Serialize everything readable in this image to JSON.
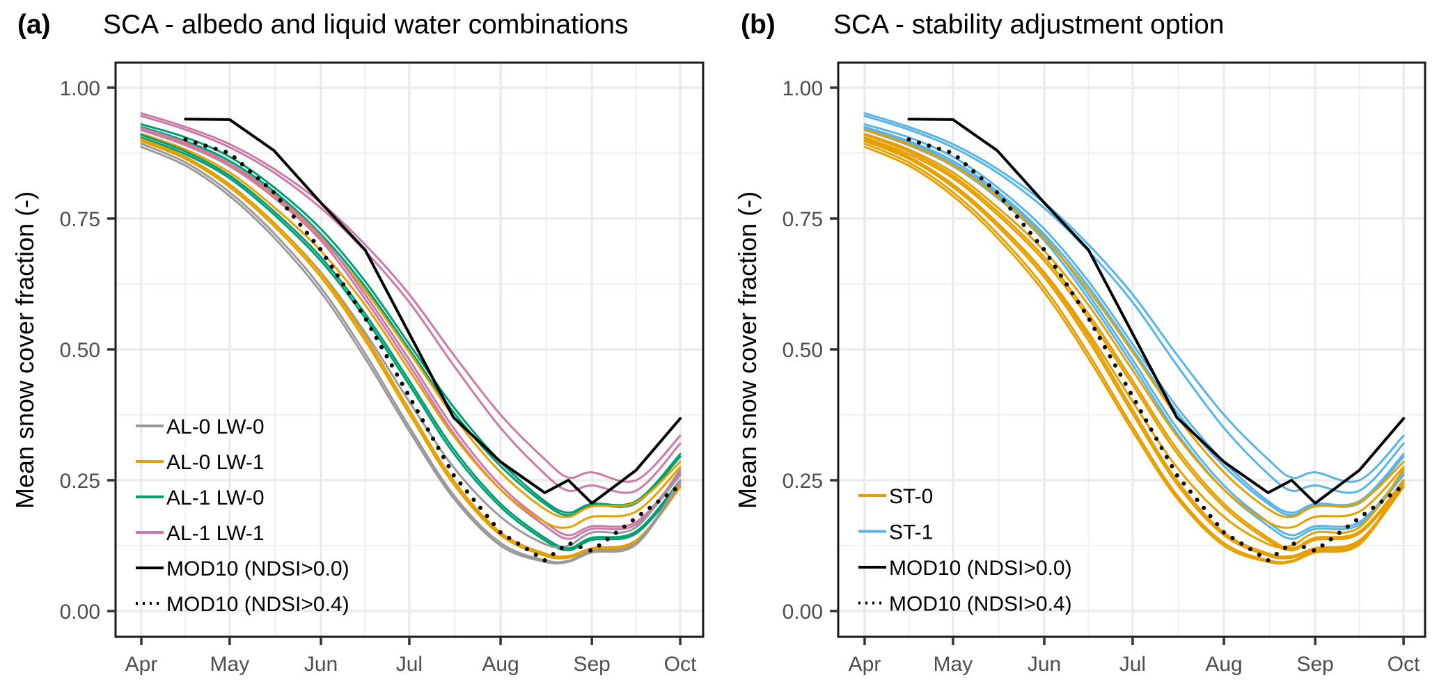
{
  "figure": {
    "panels": [
      {
        "tag": "(a)",
        "title": "SCA - albedo and liquid water combinations"
      },
      {
        "tag": "(b)",
        "title": "SCA - stability adjustment option"
      }
    ]
  },
  "chart_data": [
    {
      "type": "line",
      "panel": "a",
      "title": "SCA - albedo and liquid water combinations",
      "xlabel": "",
      "ylabel": "Mean snow cover fraction (-)",
      "x_unit": "days since Apr 1",
      "xlim": [
        0,
        183
      ],
      "ylim": [
        -0.02,
        1.05
      ],
      "xticks": [
        {
          "day": 0,
          "label": "Apr"
        },
        {
          "day": 30,
          "label": "May"
        },
        {
          "day": 61,
          "label": "Jun"
        },
        {
          "day": 91,
          "label": "Jul"
        },
        {
          "day": 122,
          "label": "Aug"
        },
        {
          "day": 153,
          "label": "Sep"
        },
        {
          "day": 183,
          "label": "Oct"
        }
      ],
      "yticks": [
        {
          "value": 0.0,
          "label": "0.00"
        },
        {
          "value": 0.25,
          "label": "0.25"
        },
        {
          "value": 0.5,
          "label": "0.50"
        },
        {
          "value": 0.75,
          "label": "0.75"
        },
        {
          "value": 1.0,
          "label": "1.00"
        }
      ],
      "grid": true,
      "legend_position": "bottom-left",
      "legend": [
        {
          "label": "AL-0 LW-0",
          "color": "#999999",
          "style": "solid"
        },
        {
          "label": "AL-0 LW-1",
          "color": "#E69F00",
          "style": "solid"
        },
        {
          "label": "AL-1 LW-0",
          "color": "#009E73",
          "style": "solid"
        },
        {
          "label": "AL-1 LW-1",
          "color": "#CC79A7",
          "style": "solid"
        },
        {
          "label": "MOD10 (NDSI>0.0)",
          "color": "#000000",
          "style": "solid"
        },
        {
          "label": "MOD10 (NDSI>0.4)",
          "color": "#000000",
          "style": "dotted"
        }
      ],
      "x": [
        0,
        15,
        30,
        45,
        61,
        76,
        91,
        106,
        122,
        137,
        145,
        153,
        168,
        183
      ],
      "series": [
        {
          "name": "AL-1 LW-1",
          "color": "#CC79A7",
          "values": [
            0.951,
            0.925,
            0.892,
            0.845,
            0.78,
            0.7,
            0.605,
            0.49,
            0.375,
            0.29,
            0.255,
            0.265,
            0.25,
            0.335
          ]
        },
        {
          "name": "AL-1 LW-1",
          "color": "#CC79A7",
          "values": [
            0.946,
            0.92,
            0.886,
            0.838,
            0.77,
            0.688,
            0.59,
            0.47,
            0.35,
            0.262,
            0.23,
            0.24,
            0.23,
            0.32
          ]
        },
        {
          "name": "AL-1 LW-0",
          "color": "#009E73",
          "values": [
            0.93,
            0.905,
            0.868,
            0.81,
            0.73,
            0.63,
            0.51,
            0.39,
            0.285,
            0.21,
            0.188,
            0.205,
            0.21,
            0.3
          ]
        },
        {
          "name": "AL-1 LW-0",
          "color": "#009E73",
          "values": [
            0.925,
            0.898,
            0.86,
            0.802,
            0.72,
            0.62,
            0.5,
            0.38,
            0.277,
            0.205,
            0.183,
            0.202,
            0.206,
            0.295
          ]
        },
        {
          "name": "AL-0 LW-1",
          "color": "#E69F00",
          "values": [
            0.92,
            0.892,
            0.852,
            0.793,
            0.712,
            0.613,
            0.495,
            0.372,
            0.265,
            0.195,
            0.18,
            0.2,
            0.208,
            0.285
          ]
        },
        {
          "name": "AL-1 LW-1",
          "color": "#CC79A7",
          "values": [
            0.923,
            0.895,
            0.855,
            0.797,
            0.716,
            0.605,
            0.48,
            0.35,
            0.24,
            0.17,
            0.145,
            0.162,
            0.17,
            0.265
          ]
        },
        {
          "name": "AL-1 LW-1",
          "color": "#CC79A7",
          "values": [
            0.919,
            0.89,
            0.85,
            0.79,
            0.708,
            0.596,
            0.47,
            0.34,
            0.232,
            0.163,
            0.138,
            0.157,
            0.165,
            0.26
          ]
        },
        {
          "name": "AL-0 LW-1",
          "color": "#E69F00",
          "values": [
            0.912,
            0.882,
            0.838,
            0.772,
            0.688,
            0.585,
            0.46,
            0.335,
            0.232,
            0.17,
            0.16,
            0.18,
            0.19,
            0.275
          ]
        },
        {
          "name": "AL-1 LW-0",
          "color": "#009E73",
          "values": [
            0.91,
            0.878,
            0.832,
            0.764,
            0.676,
            0.568,
            0.44,
            0.31,
            0.205,
            0.14,
            0.12,
            0.14,
            0.152,
            0.25
          ]
        },
        {
          "name": "AL-1 LW-0",
          "color": "#009E73",
          "values": [
            0.905,
            0.873,
            0.827,
            0.758,
            0.669,
            0.56,
            0.432,
            0.302,
            0.199,
            0.135,
            0.116,
            0.136,
            0.148,
            0.245
          ]
        },
        {
          "name": "AL-0 LW-0",
          "color": "#999999",
          "values": [
            0.9,
            0.866,
            0.815,
            0.742,
            0.647,
            0.532,
            0.4,
            0.275,
            0.18,
            0.128,
            0.125,
            0.15,
            0.16,
            0.27
          ]
        },
        {
          "name": "AL-0 LW-1",
          "color": "#E69F00",
          "values": [
            0.902,
            0.868,
            0.815,
            0.742,
            0.645,
            0.525,
            0.385,
            0.25,
            0.15,
            0.11,
            0.105,
            0.12,
            0.135,
            0.24
          ]
        },
        {
          "name": "AL-0 LW-1",
          "color": "#E69F00",
          "values": [
            0.898,
            0.864,
            0.81,
            0.736,
            0.638,
            0.517,
            0.377,
            0.243,
            0.145,
            0.106,
            0.102,
            0.117,
            0.132,
            0.237
          ]
        },
        {
          "name": "AL-0 LW-0",
          "color": "#999999",
          "values": [
            0.893,
            0.857,
            0.8,
            0.722,
            0.618,
            0.492,
            0.352,
            0.222,
            0.13,
            0.097,
            0.096,
            0.115,
            0.13,
            0.25
          ]
        },
        {
          "name": "AL-0 LW-0",
          "color": "#999999",
          "values": [
            0.887,
            0.851,
            0.793,
            0.714,
            0.609,
            0.483,
            0.344,
            0.216,
            0.125,
            0.094,
            0.094,
            0.112,
            0.127,
            0.245
          ]
        },
        {
          "name": "MOD10 (NDSI>0.0)",
          "color": "#000000",
          "style": "solid",
          "values": [
            null,
            0.94,
            0.939,
            0.88,
            0.78,
            0.69,
            0.53,
            0.37,
            0.285,
            0.226,
            0.25,
            0.206,
            0.269,
            0.368
          ]
        },
        {
          "name": "MOD10 (NDSI>0.4)",
          "color": "#000000",
          "style": "dotted",
          "values": [
            null,
            0.901,
            0.875,
            0.8,
            0.69,
            0.56,
            0.41,
            0.26,
            0.15,
            0.097,
            0.13,
            0.115,
            0.178,
            0.24
          ]
        }
      ]
    },
    {
      "type": "line",
      "panel": "b",
      "title": "SCA - stability adjustment option",
      "xlabel": "",
      "ylabel": "Mean snow cover fraction (-)",
      "x_unit": "days since Apr 1",
      "xlim": [
        0,
        183
      ],
      "ylim": [
        -0.02,
        1.05
      ],
      "xticks": [
        {
          "day": 0,
          "label": "Apr"
        },
        {
          "day": 30,
          "label": "May"
        },
        {
          "day": 61,
          "label": "Jun"
        },
        {
          "day": 91,
          "label": "Jul"
        },
        {
          "day": 122,
          "label": "Aug"
        },
        {
          "day": 153,
          "label": "Sep"
        },
        {
          "day": 183,
          "label": "Oct"
        }
      ],
      "yticks": [
        {
          "value": 0.0,
          "label": "0.00"
        },
        {
          "value": 0.25,
          "label": "0.25"
        },
        {
          "value": 0.5,
          "label": "0.50"
        },
        {
          "value": 0.75,
          "label": "0.75"
        },
        {
          "value": 1.0,
          "label": "1.00"
        }
      ],
      "grid": true,
      "legend_position": "bottom-left",
      "legend": [
        {
          "label": "ST-0",
          "color": "#E69F00",
          "style": "solid"
        },
        {
          "label": "ST-1",
          "color": "#56B4E9",
          "style": "solid"
        },
        {
          "label": "MOD10 (NDSI>0.0)",
          "color": "#000000",
          "style": "solid"
        },
        {
          "label": "MOD10 (NDSI>0.4)",
          "color": "#000000",
          "style": "dotted"
        }
      ],
      "x": [
        0,
        15,
        30,
        45,
        61,
        76,
        91,
        106,
        122,
        137,
        145,
        153,
        168,
        183
      ],
      "series": [
        {
          "name": "ST-1",
          "color": "#56B4E9",
          "values": [
            0.951,
            0.925,
            0.892,
            0.845,
            0.78,
            0.7,
            0.605,
            0.49,
            0.375,
            0.29,
            0.255,
            0.265,
            0.25,
            0.335
          ]
        },
        {
          "name": "ST-1",
          "color": "#56B4E9",
          "values": [
            0.946,
            0.92,
            0.886,
            0.838,
            0.77,
            0.688,
            0.59,
            0.47,
            0.35,
            0.262,
            0.23,
            0.24,
            0.23,
            0.32
          ]
        },
        {
          "name": "ST-1",
          "color": "#56B4E9",
          "values": [
            0.93,
            0.905,
            0.868,
            0.81,
            0.73,
            0.63,
            0.51,
            0.39,
            0.285,
            0.21,
            0.188,
            0.205,
            0.21,
            0.3
          ]
        },
        {
          "name": "ST-1",
          "color": "#56B4E9",
          "values": [
            0.925,
            0.898,
            0.86,
            0.802,
            0.72,
            0.62,
            0.5,
            0.38,
            0.277,
            0.205,
            0.183,
            0.202,
            0.206,
            0.295
          ]
        },
        {
          "name": "ST-1",
          "color": "#56B4E9",
          "values": [
            0.923,
            0.895,
            0.855,
            0.797,
            0.716,
            0.605,
            0.48,
            0.35,
            0.24,
            0.17,
            0.145,
            0.162,
            0.17,
            0.265
          ]
        },
        {
          "name": "ST-1",
          "color": "#56B4E9",
          "values": [
            0.919,
            0.89,
            0.85,
            0.79,
            0.708,
            0.596,
            0.47,
            0.34,
            0.232,
            0.163,
            0.138,
            0.157,
            0.165,
            0.26
          ]
        },
        {
          "name": "ST-0",
          "color": "#E69F00",
          "values": [
            0.92,
            0.892,
            0.852,
            0.793,
            0.712,
            0.613,
            0.495,
            0.372,
            0.265,
            0.195,
            0.18,
            0.2,
            0.208,
            0.285
          ]
        },
        {
          "name": "ST-0",
          "color": "#E69F00",
          "values": [
            0.912,
            0.882,
            0.838,
            0.772,
            0.688,
            0.585,
            0.46,
            0.335,
            0.232,
            0.17,
            0.16,
            0.18,
            0.19,
            0.275
          ]
        },
        {
          "name": "ST-0",
          "color": "#E69F00",
          "values": [
            0.91,
            0.878,
            0.832,
            0.764,
            0.676,
            0.568,
            0.44,
            0.31,
            0.205,
            0.14,
            0.12,
            0.14,
            0.152,
            0.25
          ]
        },
        {
          "name": "ST-0",
          "color": "#E69F00",
          "values": [
            0.905,
            0.873,
            0.827,
            0.758,
            0.669,
            0.56,
            0.432,
            0.302,
            0.199,
            0.135,
            0.116,
            0.136,
            0.148,
            0.245
          ]
        },
        {
          "name": "ST-0",
          "color": "#E69F00",
          "values": [
            0.9,
            0.866,
            0.815,
            0.742,
            0.647,
            0.532,
            0.4,
            0.275,
            0.18,
            0.128,
            0.125,
            0.15,
            0.16,
            0.27
          ]
        },
        {
          "name": "ST-0",
          "color": "#E69F00",
          "values": [
            0.902,
            0.868,
            0.815,
            0.742,
            0.645,
            0.525,
            0.385,
            0.25,
            0.15,
            0.11,
            0.105,
            0.12,
            0.135,
            0.24
          ]
        },
        {
          "name": "ST-0",
          "color": "#E69F00",
          "values": [
            0.898,
            0.864,
            0.81,
            0.736,
            0.638,
            0.517,
            0.377,
            0.243,
            0.145,
            0.106,
            0.102,
            0.117,
            0.132,
            0.237
          ]
        },
        {
          "name": "ST-0",
          "color": "#E69F00",
          "values": [
            0.893,
            0.857,
            0.8,
            0.722,
            0.618,
            0.492,
            0.352,
            0.222,
            0.13,
            0.097,
            0.096,
            0.115,
            0.13,
            0.25
          ]
        },
        {
          "name": "ST-0",
          "color": "#E69F00",
          "values": [
            0.887,
            0.851,
            0.793,
            0.714,
            0.609,
            0.483,
            0.344,
            0.216,
            0.125,
            0.094,
            0.094,
            0.112,
            0.127,
            0.245
          ]
        },
        {
          "name": "MOD10 (NDSI>0.0)",
          "color": "#000000",
          "style": "solid",
          "values": [
            null,
            0.94,
            0.939,
            0.88,
            0.78,
            0.69,
            0.53,
            0.37,
            0.285,
            0.226,
            0.25,
            0.206,
            0.269,
            0.368
          ]
        },
        {
          "name": "MOD10 (NDSI>0.4)",
          "color": "#000000",
          "style": "dotted",
          "values": [
            null,
            0.901,
            0.875,
            0.8,
            0.69,
            0.56,
            0.41,
            0.26,
            0.15,
            0.097,
            0.13,
            0.115,
            0.178,
            0.24
          ]
        }
      ]
    }
  ]
}
